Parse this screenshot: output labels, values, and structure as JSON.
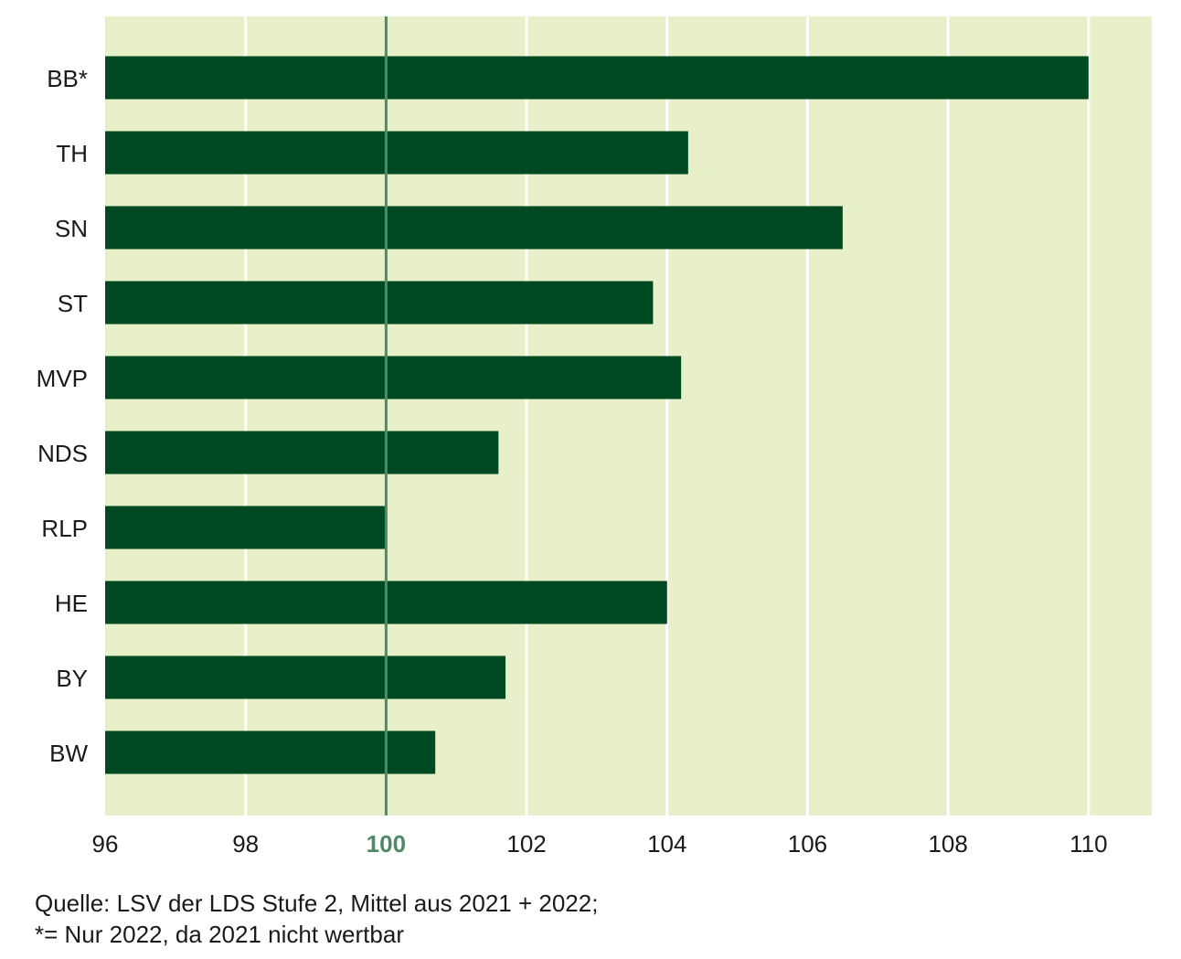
{
  "chart_data": {
    "type": "bar",
    "orientation": "horizontal",
    "title": "",
    "xlabel": "",
    "ylabel": "",
    "categories": [
      "BB*",
      "TH",
      "SN",
      "ST",
      "MVP",
      "NDS",
      "RLP",
      "HE",
      "BY",
      "BW"
    ],
    "values": [
      110.0,
      104.3,
      106.5,
      103.8,
      104.2,
      101.6,
      100.0,
      104.0,
      101.7,
      100.7
    ],
    "xlim": [
      96,
      110.9
    ],
    "xticks": [
      "96",
      "98",
      "100",
      "102",
      "104",
      "106",
      "108",
      "110"
    ],
    "reference_line": 100,
    "highlight_tick": "100",
    "grid": "vertical",
    "colors": {
      "bar": "#004a23",
      "background": "#e8f0c9",
      "grid": "#ffffff",
      "reference_line": "#4f8a68",
      "highlight_tick": "#4f8a68"
    }
  },
  "source": {
    "line1": "Quelle: LSV der LDS Stufe 2, Mittel aus 2021 + 2022;",
    "line2": "*= Nur 2022, da 2021 nicht wertbar"
  }
}
